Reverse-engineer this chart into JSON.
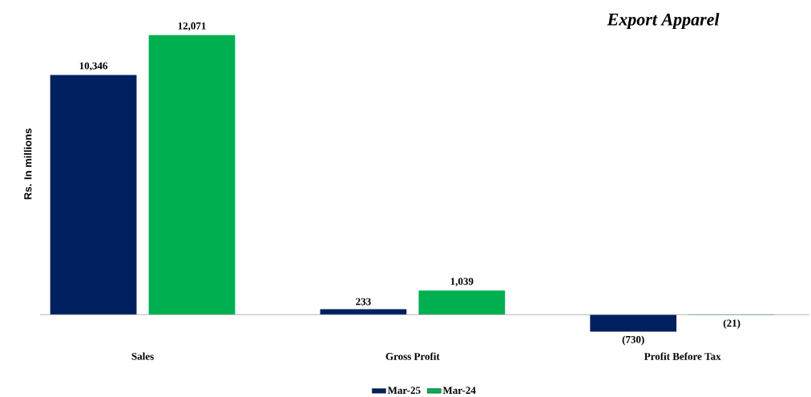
{
  "chart_data": {
    "type": "bar",
    "title": "Export Apparel",
    "ylabel": "Rs. In millions",
    "categories": [
      "Sales",
      "Gross Profit",
      "Profit Before Tax"
    ],
    "series": [
      {
        "name": "Mar-25",
        "color": "#002060",
        "values": [
          10346,
          233,
          -730
        ],
        "value_labels": [
          "10,346",
          "233",
          "(730)"
        ]
      },
      {
        "name": "Mar-24",
        "color": "#00b050",
        "values": [
          12071,
          1039,
          -21
        ],
        "value_labels": [
          "12,071",
          "1,039",
          "(21)"
        ]
      }
    ],
    "legend": "bottom"
  }
}
